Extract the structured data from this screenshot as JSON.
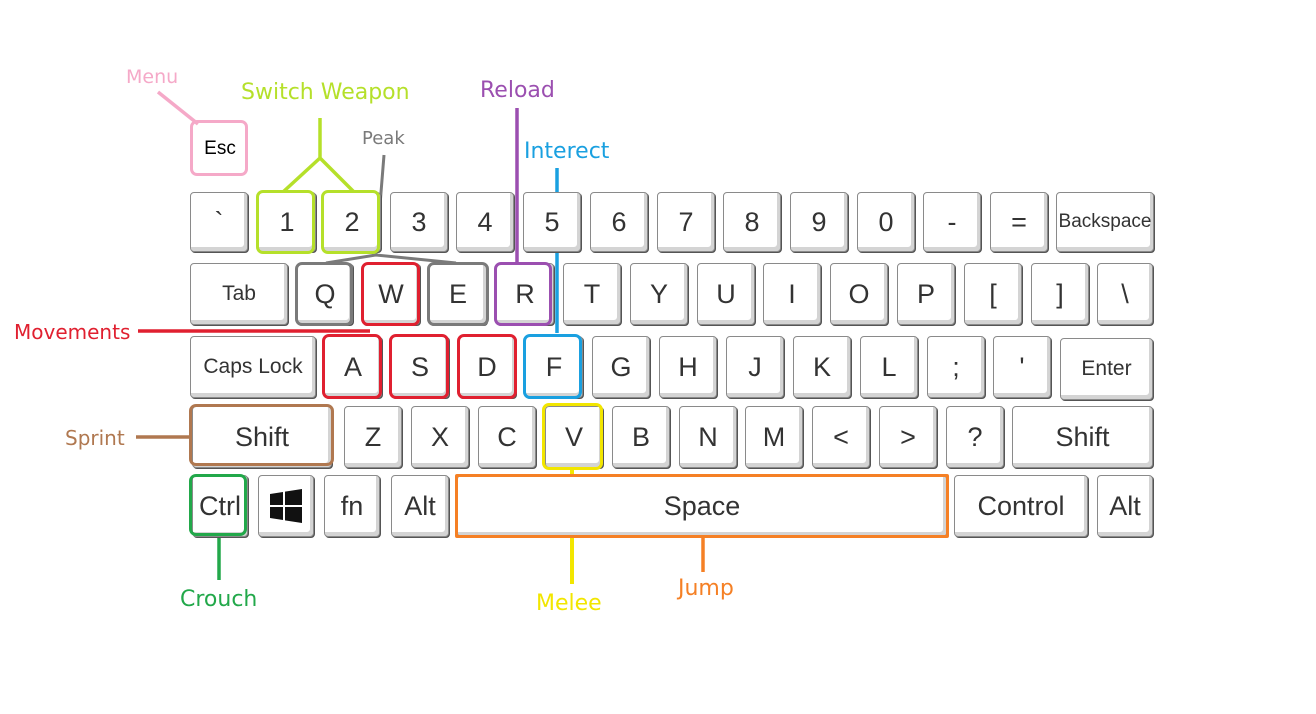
{
  "colors": {
    "menu": "#f5a9c8",
    "switch_weapon": "#b5e02a",
    "peak": "#7a7a7a",
    "reload": "#9b4fb0",
    "interact": "#1aa0e0",
    "movements": "#e02030",
    "sprint": "#b07850",
    "crouch": "#22a84a",
    "melee": "#f2e600",
    "jump": "#f58025"
  },
  "labels": {
    "menu": "Menu",
    "switch_weapon": "Switch Weapon",
    "peak": "Peak",
    "reload": "Reload",
    "interact": "Interect",
    "movements": "Movements",
    "sprint": "Sprint",
    "crouch": "Crouch",
    "melee": "Melee",
    "jump": "Jump"
  },
  "keys": {
    "esc": "Esc",
    "row1": [
      "`",
      "1",
      "2",
      "3",
      "4",
      "5",
      "6",
      "7",
      "8",
      "9",
      "0",
      "-",
      "=",
      "Backspace"
    ],
    "row2": [
      "Tab",
      "Q",
      "W",
      "E",
      "R",
      "T",
      "Y",
      "U",
      "I",
      "O",
      "P",
      "[",
      "]",
      "\\"
    ],
    "row3": [
      "Caps Lock",
      "A",
      "S",
      "D",
      "F",
      "G",
      "H",
      "J",
      "K",
      "L",
      ";",
      "'",
      "Enter"
    ],
    "row4": [
      "Shift",
      "Z",
      "X",
      "C",
      "V",
      "B",
      "N",
      "M",
      "<",
      ">",
      "?",
      "Shift"
    ],
    "row5": [
      "Ctrl",
      "windows-icon",
      "fn",
      "Alt",
      "Space",
      "Control",
      "Alt"
    ]
  }
}
